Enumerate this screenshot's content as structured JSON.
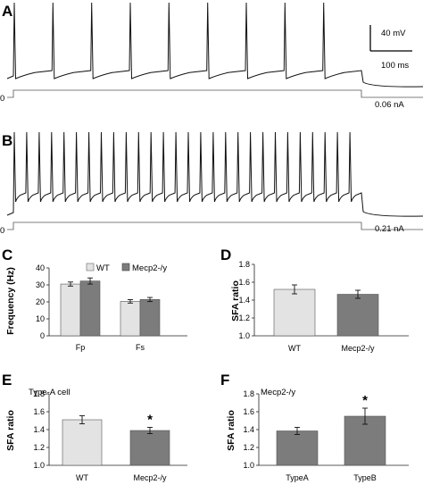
{
  "panels": {
    "A": {
      "label": "A",
      "scale_voltage": "40 mV",
      "scale_time": "100 ms",
      "current_label": "0.06 nA",
      "baseline_label": "0"
    },
    "B": {
      "label": "B",
      "current_label": "0.21 nA",
      "baseline_label": "0"
    }
  },
  "colors": {
    "wt": "#e3e3e3",
    "ko": "#7c7c7c",
    "trace": "#111111"
  },
  "chart_data": [
    {
      "id": "C",
      "label": "C",
      "type": "bar",
      "ylabel": "Frequency (Hz)",
      "ylim": [
        0,
        40
      ],
      "yticks": [
        "0",
        "10",
        "20",
        "30",
        "40"
      ],
      "categories": [
        "Fp",
        "Fs"
      ],
      "series": [
        {
          "name": "WT",
          "color": "#e3e3e3",
          "values": [
            30.5,
            20.3
          ],
          "errors": [
            1.2,
            1.0
          ]
        },
        {
          "name": "Mecp2-/y",
          "color": "#7c7c7c",
          "values": [
            32.3,
            21.4
          ],
          "errors": [
            1.8,
            1.2
          ]
        }
      ],
      "legend": "top"
    },
    {
      "id": "D",
      "label": "D",
      "type": "bar",
      "ylabel": "SFA ratio",
      "ylim": [
        1.0,
        1.8
      ],
      "yticks": [
        "1.0",
        "1.2",
        "1.4",
        "1.6",
        "1.8"
      ],
      "categories": [
        "WT",
        "Mecp2-/y"
      ],
      "values": [
        1.52,
        1.465
      ],
      "errors": [
        0.05,
        0.045
      ],
      "colors": [
        "#e3e3e3",
        "#7c7c7c"
      ]
    },
    {
      "id": "E",
      "label": "E",
      "type": "bar",
      "annotation": "Type-A cell",
      "ylabel": "SFA ratio",
      "ylim": [
        1.0,
        1.8
      ],
      "yticks": [
        "1.0",
        "1.2",
        "1.4",
        "1.6",
        "1.8"
      ],
      "categories": [
        "WT",
        "Mecp2-/y"
      ],
      "values": [
        1.51,
        1.39
      ],
      "errors": [
        0.045,
        0.035
      ],
      "colors": [
        "#e3e3e3",
        "#7c7c7c"
      ],
      "significance": [
        null,
        "*"
      ]
    },
    {
      "id": "F",
      "label": "F",
      "type": "bar",
      "annotation": "Mecp2-/y",
      "ylabel": "SFA ratio",
      "ylim": [
        1.0,
        1.8
      ],
      "yticks": [
        "1.0",
        "1.2",
        "1.4",
        "1.6",
        "1.8"
      ],
      "categories": [
        "TypeA",
        "TypeB"
      ],
      "values": [
        1.385,
        1.55
      ],
      "errors": [
        0.04,
        0.09
      ],
      "colors": [
        "#7c7c7c",
        "#7c7c7c"
      ],
      "significance": [
        null,
        "*"
      ]
    }
  ]
}
